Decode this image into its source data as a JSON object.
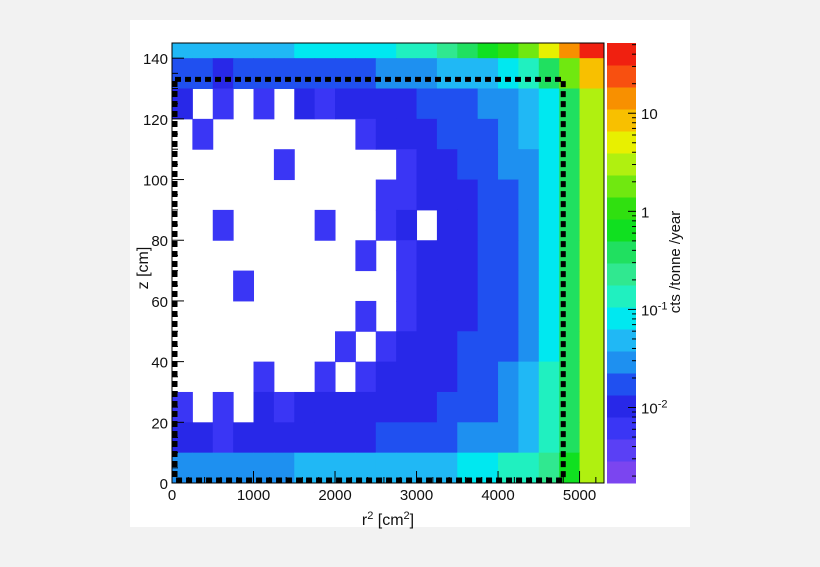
{
  "chart_data": {
    "type": "heatmap",
    "title": "",
    "xlabel": {
      "base": "r",
      "sup": "2",
      "unit_open": " [cm",
      "unit_sup": "2",
      "unit_close": "]"
    },
    "ylabel": "z [cm]",
    "colorbar_label": "cts /tonne /year",
    "xlim": [
      0,
      5300
    ],
    "ylim": [
      0,
      145
    ],
    "x_ticks": [
      "0",
      "1000",
      "2000",
      "3000",
      "4000",
      "5000"
    ],
    "y_ticks": [
      "0",
      "20",
      "40",
      "60",
      "80",
      "100",
      "120",
      "140"
    ],
    "color_scale": "log",
    "color_range": [
      0.0017,
      52
    ],
    "colorbar_ticks": [
      {
        "base": "10",
        "exp": ""
      },
      {
        "base": "1",
        "exp": ""
      },
      {
        "base": "10",
        "exp": "-1"
      },
      {
        "base": "10",
        "exp": "-2"
      }
    ],
    "palette": [
      "#7b45f0",
      "#5a40f5",
      "#3a36f5",
      "#2828e8",
      "#2050f0",
      "#1e90f0",
      "#20b8f5",
      "#00e8f0",
      "#20f0c0",
      "#30e890",
      "#20e060",
      "#10e020",
      "#30e010",
      "#70e810",
      "#b0f010",
      "#e8f000",
      "#f8c000",
      "#f89000",
      "#f85010",
      "#f02010"
    ],
    "x_bin_width": 250,
    "z_bin_height": 10,
    "value_encoding": "log10(cts/tonne/year), rows from z=140 down to z=0, null = empty",
    "log10_values": [
      [
        -1.3,
        -1.3,
        -1.3,
        -1.2,
        -1.2,
        -1.2,
        -1.1,
        -1.1,
        -1.1,
        -1.0,
        -1.0,
        -0.9,
        -0.8,
        -0.7,
        -0.5,
        -0.3,
        0.0,
        0.3,
        0.7,
        1.1,
        1.5
      ],
      [
        -1.8,
        -1.8,
        -1.9,
        -1.8,
        -1.8,
        -1.8,
        -1.7,
        -1.8,
        -1.7,
        -1.7,
        -1.6,
        -1.5,
        -1.5,
        -1.4,
        -1.3,
        -1.2,
        -1.0,
        -0.8,
        -0.4,
        0.2,
        0.9
      ],
      [
        -2.0,
        null,
        -2.1,
        null,
        -2.1,
        null,
        -2.0,
        -2.1,
        -2.0,
        -2.0,
        -1.9,
        -1.9,
        -1.8,
        -1.7,
        -1.7,
        -1.6,
        -1.5,
        -1.3,
        -1.0,
        -0.4,
        0.5
      ],
      [
        null,
        -2.1,
        null,
        null,
        null,
        null,
        null,
        null,
        null,
        -2.1,
        -2.0,
        -2.0,
        -1.9,
        -1.8,
        -1.8,
        -1.7,
        -1.6,
        -1.4,
        -1.0,
        -0.4,
        0.4
      ],
      [
        null,
        null,
        null,
        null,
        null,
        -2.1,
        null,
        null,
        null,
        null,
        null,
        -2.1,
        -2.0,
        -2.0,
        -1.8,
        -1.8,
        -1.6,
        -1.5,
        -1.0,
        -0.4,
        0.4
      ],
      [
        null,
        null,
        null,
        null,
        null,
        null,
        null,
        null,
        null,
        null,
        -2.1,
        -2.1,
        -2.0,
        -1.9,
        -1.9,
        -1.8,
        -1.7,
        -1.5,
        -1.0,
        -0.4,
        0.4
      ],
      [
        null,
        null,
        -2.1,
        null,
        null,
        null,
        null,
        -2.1,
        null,
        null,
        -2.1,
        -2.0,
        null,
        -2.0,
        -1.9,
        -1.8,
        -1.7,
        -1.5,
        -1.0,
        -0.4,
        0.4
      ],
      [
        null,
        null,
        null,
        null,
        null,
        null,
        null,
        null,
        null,
        -2.1,
        null,
        -2.1,
        -2.0,
        -1.9,
        -1.9,
        -1.8,
        -1.7,
        -1.5,
        -1.0,
        -0.4,
        0.4
      ],
      [
        null,
        null,
        null,
        -2.1,
        null,
        null,
        null,
        null,
        null,
        null,
        null,
        -2.1,
        -2.0,
        -2.0,
        -1.9,
        -1.8,
        -1.7,
        -1.5,
        -1.0,
        -0.4,
        0.4
      ],
      [
        null,
        null,
        null,
        null,
        null,
        null,
        null,
        null,
        null,
        -2.1,
        null,
        -2.1,
        -2.0,
        -1.9,
        -1.9,
        -1.8,
        -1.7,
        -1.5,
        -1.0,
        -0.4,
        0.4
      ],
      [
        null,
        null,
        null,
        null,
        null,
        null,
        null,
        null,
        -2.1,
        null,
        -2.1,
        -2.0,
        -2.0,
        -1.9,
        -1.8,
        -1.8,
        -1.7,
        -1.5,
        -1.0,
        -0.4,
        0.4
      ],
      [
        null,
        null,
        null,
        null,
        -2.1,
        null,
        null,
        -2.1,
        null,
        -2.1,
        -2.0,
        -2.0,
        -1.9,
        -1.9,
        -1.8,
        -1.7,
        -1.6,
        -1.4,
        -0.9,
        -0.4,
        0.4
      ],
      [
        -2.1,
        null,
        -2.1,
        null,
        -2.0,
        -2.1,
        -2.0,
        -2.0,
        -2.0,
        -2.0,
        -1.9,
        -1.9,
        -1.9,
        -1.8,
        -1.8,
        -1.7,
        -1.6,
        -1.4,
        -0.9,
        -0.4,
        0.4
      ],
      [
        -2.0,
        -2.0,
        -2.1,
        -2.0,
        -2.0,
        -2.0,
        -1.9,
        -1.9,
        -1.9,
        -1.9,
        -1.8,
        -1.8,
        -1.7,
        -1.7,
        -1.6,
        -1.6,
        -1.5,
        -1.3,
        -0.9,
        -0.4,
        0.4
      ],
      [
        -1.5,
        -1.5,
        -1.5,
        -1.5,
        -1.5,
        -1.5,
        -1.4,
        -1.4,
        -1.4,
        -1.3,
        -1.3,
        -1.3,
        -1.2,
        -1.2,
        -1.1,
        -1.0,
        -0.9,
        -0.8,
        -0.6,
        -0.2,
        0.4
      ]
    ],
    "fiducial_box": {
      "r2": [
        0,
        4800
      ],
      "z": [
        1,
        133
      ],
      "style": "dashed black"
    },
    "grid": false,
    "legend": "colorbar-right"
  }
}
